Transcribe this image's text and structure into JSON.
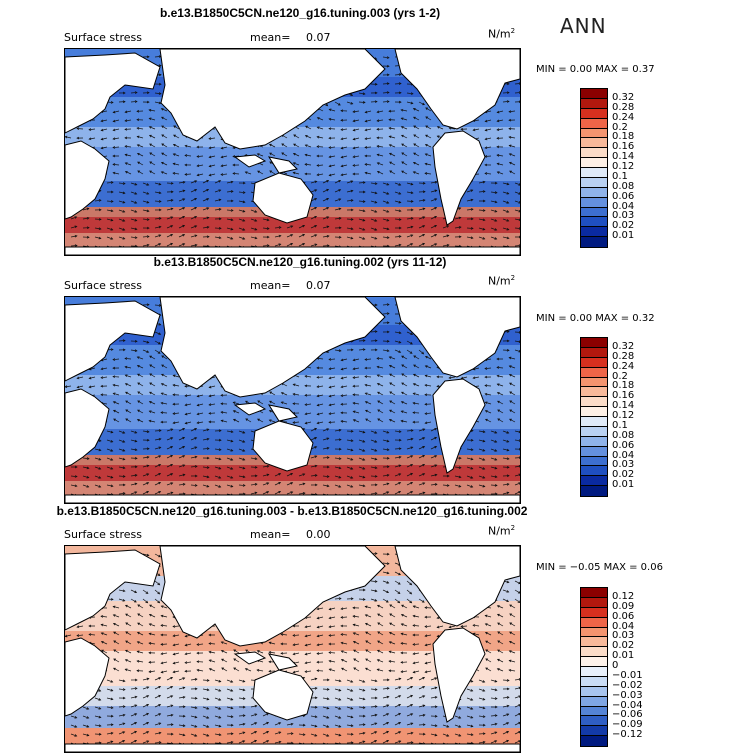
{
  "season": "ANN",
  "panels": [
    {
      "title": "b.e13.B1850C5CN.ne120_g16.tuning.003 (yrs 1-2)",
      "variable": "Surface stress",
      "mean_label": "mean=",
      "mean_value": "0.07",
      "units": "N/m",
      "units_sup": "2",
      "minmax": "MIN =   0.00 MAX =   0.37",
      "colorbar_levels": [
        "0.32",
        "0.28",
        "0.24",
        "0.2",
        "0.18",
        "0.16",
        "0.14",
        "0.12",
        "0.1",
        "0.08",
        "0.06",
        "0.04",
        "0.03",
        "0.02",
        "0.01"
      ],
      "colorbar_colors": [
        "#8b0000",
        "#b2180e",
        "#d7301f",
        "#ef6548",
        "#f4946f",
        "#f8b99a",
        "#fbdcc8",
        "#fdf0e6",
        "#dfeaf8",
        "#b9d1f2",
        "#8fb3ea",
        "#6490de",
        "#3d6fd0",
        "#1f4fc0",
        "#0a2aa0",
        "#001a80"
      ]
    },
    {
      "title": "b.e13.B1850C5CN.ne120_g16.tuning.002 (yrs 11-12)",
      "variable": "Surface stress",
      "mean_label": "mean=",
      "mean_value": "0.07",
      "units": "N/m",
      "units_sup": "2",
      "minmax": "MIN =   0.00 MAX =   0.32",
      "colorbar_levels": [
        "0.32",
        "0.28",
        "0.24",
        "0.2",
        "0.18",
        "0.16",
        "0.14",
        "0.12",
        "0.1",
        "0.08",
        "0.06",
        "0.04",
        "0.03",
        "0.02",
        "0.01"
      ],
      "colorbar_colors": [
        "#8b0000",
        "#b2180e",
        "#d7301f",
        "#ef6548",
        "#f4946f",
        "#f8b99a",
        "#fbdcc8",
        "#fdf0e6",
        "#dfeaf8",
        "#b9d1f2",
        "#8fb3ea",
        "#6490de",
        "#3d6fd0",
        "#1f4fc0",
        "#0a2aa0",
        "#001a80"
      ]
    },
    {
      "title": "b.e13.B1850C5CN.ne120_g16.tuning.003 - b.e13.B1850C5CN.ne120_g16.tuning.002",
      "variable": "Surface stress",
      "mean_label": "mean=",
      "mean_value": "0.00",
      "units": "N/m",
      "units_sup": "2",
      "minmax": "MIN =  −0.05 MAX =   0.06",
      "colorbar_levels": [
        "0.12",
        "0.09",
        "0.06",
        "0.04",
        "0.03",
        "0.02",
        "0.01",
        "0",
        "−0.01",
        "−0.02",
        "−0.03",
        "−0.04",
        "−0.06",
        "−0.09",
        "−0.12"
      ],
      "colorbar_colors": [
        "#8b0000",
        "#b2180e",
        "#d7301f",
        "#ef6548",
        "#f4946f",
        "#f8b99a",
        "#fbdcc8",
        "#fdf2ea",
        "#e8f0fb",
        "#c9dcf5",
        "#a7c4ee",
        "#7fa6e4",
        "#5584d6",
        "#2f5ec4",
        "#133aa8",
        "#001a80"
      ]
    }
  ]
}
